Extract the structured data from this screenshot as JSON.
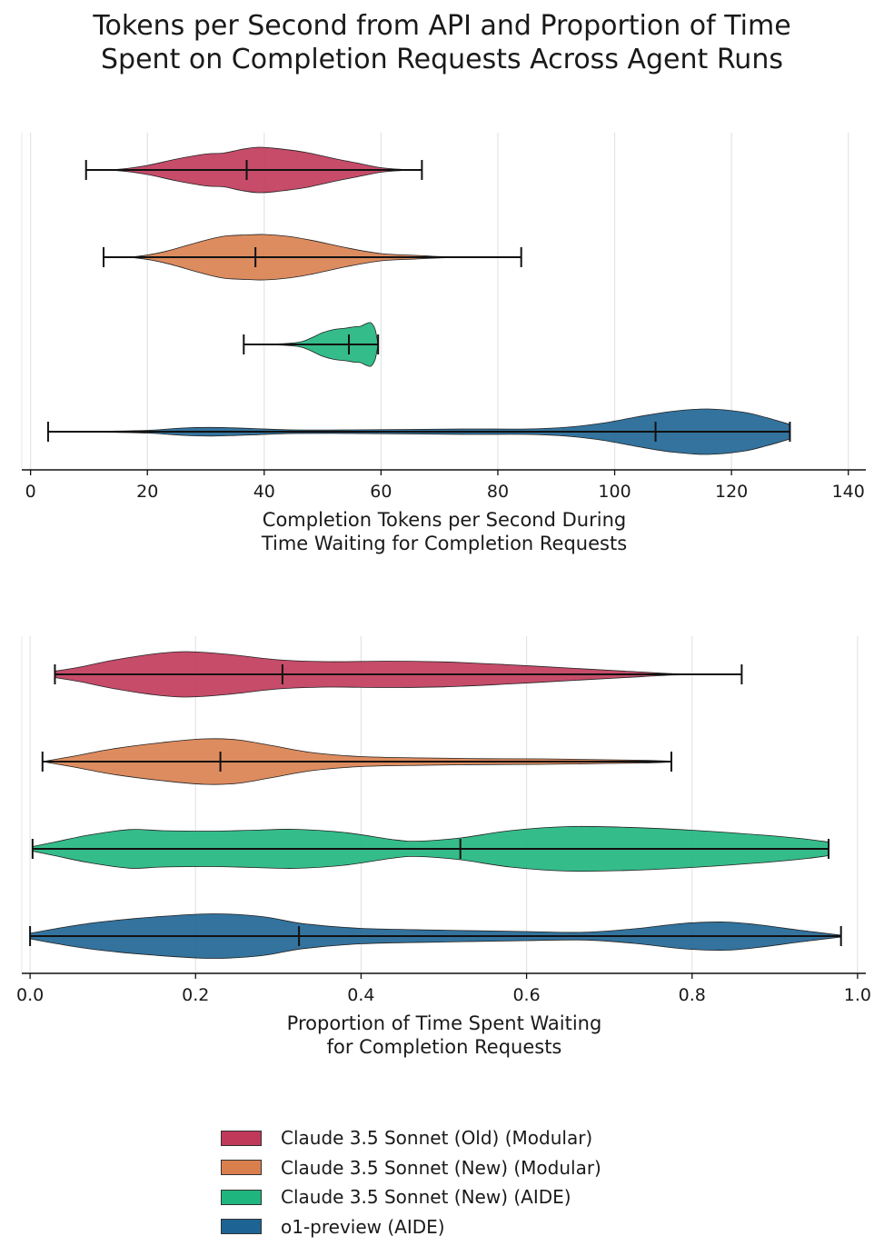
{
  "title_line1": "Tokens per Second from API and Proportion of Time",
  "title_line2": "Spent on Completion Requests Across Agent Runs",
  "chart_data": [
    {
      "type": "violin",
      "orientation": "horizontal",
      "xlabel_line1": "Completion Tokens per Second During",
      "xlabel_line2": "Time Waiting for Completion Requests",
      "xlim": [
        -1.5,
        143
      ],
      "xticks": [
        0,
        20,
        40,
        60,
        80,
        100,
        120,
        140
      ],
      "xtick_labels": [
        "0",
        "20",
        "40",
        "60",
        "80",
        "100",
        "120",
        "140"
      ],
      "grid": "vertical",
      "series": [
        {
          "name": "Claude 3.5 Sonnet (Old) (Modular)",
          "min": 9.5,
          "median": 37,
          "max": 67,
          "density": [
            [
              9.5,
              0.0
            ],
            [
              15,
              0.03
            ],
            [
              20,
              0.2
            ],
            [
              25,
              0.48
            ],
            [
              30,
              0.7
            ],
            [
              33,
              0.74
            ],
            [
              36,
              0.9
            ],
            [
              39,
              1.0
            ],
            [
              42,
              0.95
            ],
            [
              47,
              0.78
            ],
            [
              52,
              0.5
            ],
            [
              56,
              0.3
            ],
            [
              60,
              0.1
            ],
            [
              64,
              0.02
            ],
            [
              67,
              0.0
            ]
          ]
        },
        {
          "name": "Claude 3.5 Sonnet (New) (Modular)",
          "min": 12.5,
          "median": 38.5,
          "max": 84,
          "density": [
            [
              12.5,
              0.0
            ],
            [
              18,
              0.03
            ],
            [
              23,
              0.25
            ],
            [
              29,
              0.68
            ],
            [
              33,
              0.92
            ],
            [
              37,
              0.98
            ],
            [
              40,
              1.0
            ],
            [
              44,
              0.92
            ],
            [
              48,
              0.75
            ],
            [
              54,
              0.42
            ],
            [
              60,
              0.16
            ],
            [
              66,
              0.08
            ],
            [
              70,
              0.03
            ],
            [
              76,
              0.01
            ],
            [
              84,
              0.0
            ]
          ]
        },
        {
          "name": "Claude 3.5 Sonnet (New) (AIDE)",
          "min": 36.5,
          "median": 54.5,
          "max": 59.5,
          "density": [
            [
              36.5,
              0.0
            ],
            [
              42,
              0.02
            ],
            [
              46,
              0.1
            ],
            [
              48,
              0.28
            ],
            [
              50,
              0.52
            ],
            [
              52,
              0.66
            ],
            [
              54,
              0.72
            ],
            [
              55.5,
              0.78
            ],
            [
              56.5,
              0.8
            ],
            [
              57.5,
              0.92
            ],
            [
              58.3,
              0.95
            ],
            [
              59,
              0.65
            ],
            [
              59.5,
              0.0
            ]
          ]
        },
        {
          "name": "o1-preview (AIDE)",
          "min": 3,
          "median": 107,
          "max": 130,
          "density": [
            [
              3,
              0.0
            ],
            [
              10,
              0.01
            ],
            [
              20,
              0.06
            ],
            [
              26,
              0.16
            ],
            [
              31,
              0.19
            ],
            [
              38,
              0.14
            ],
            [
              45,
              0.08
            ],
            [
              55,
              0.08
            ],
            [
              65,
              0.1
            ],
            [
              75,
              0.12
            ],
            [
              85,
              0.12
            ],
            [
              92,
              0.2
            ],
            [
              98,
              0.38
            ],
            [
              104,
              0.66
            ],
            [
              110,
              0.9
            ],
            [
              116,
              1.0
            ],
            [
              122,
              0.86
            ],
            [
              126,
              0.62
            ],
            [
              130,
              0.32
            ]
          ]
        }
      ]
    },
    {
      "type": "violin",
      "orientation": "horizontal",
      "xlabel_line1": "Proportion of Time Spent Waiting",
      "xlabel_line2": "for Completion Requests",
      "xlim": [
        -0.01,
        1.01
      ],
      "xticks": [
        0.0,
        0.2,
        0.4,
        0.6,
        0.8,
        1.0
      ],
      "xtick_labels": [
        "0.0",
        "0.2",
        "0.4",
        "0.6",
        "0.8",
        "1.0"
      ],
      "grid": "vertical",
      "series": [
        {
          "name": "Claude 3.5 Sonnet (Old) (Modular)",
          "min": 0.03,
          "median": 0.305,
          "max": 0.86,
          "density": [
            [
              0.03,
              0.14
            ],
            [
              0.06,
              0.32
            ],
            [
              0.1,
              0.62
            ],
            [
              0.15,
              0.9
            ],
            [
              0.19,
              1.0
            ],
            [
              0.24,
              0.88
            ],
            [
              0.3,
              0.64
            ],
            [
              0.36,
              0.56
            ],
            [
              0.43,
              0.58
            ],
            [
              0.5,
              0.55
            ],
            [
              0.58,
              0.42
            ],
            [
              0.66,
              0.26
            ],
            [
              0.72,
              0.14
            ],
            [
              0.77,
              0.04
            ],
            [
              0.8,
              0.01
            ],
            [
              0.86,
              0.0
            ]
          ]
        },
        {
          "name": "Claude 3.5 Sonnet (New) (Modular)",
          "min": 0.015,
          "median": 0.23,
          "max": 0.775,
          "density": [
            [
              0.015,
              0.0
            ],
            [
              0.05,
              0.22
            ],
            [
              0.1,
              0.56
            ],
            [
              0.16,
              0.84
            ],
            [
              0.21,
              1.0
            ],
            [
              0.25,
              0.96
            ],
            [
              0.29,
              0.72
            ],
            [
              0.34,
              0.4
            ],
            [
              0.4,
              0.22
            ],
            [
              0.48,
              0.16
            ],
            [
              0.55,
              0.13
            ],
            [
              0.62,
              0.12
            ],
            [
              0.7,
              0.08
            ],
            [
              0.74,
              0.06
            ],
            [
              0.775,
              0.02
            ]
          ]
        },
        {
          "name": "Claude 3.5 Sonnet (New) (AIDE)",
          "min": 0.003,
          "median": 0.52,
          "max": 0.965,
          "density": [
            [
              0.003,
              0.1
            ],
            [
              0.03,
              0.3
            ],
            [
              0.07,
              0.6
            ],
            [
              0.12,
              0.85
            ],
            [
              0.16,
              0.8
            ],
            [
              0.22,
              0.78
            ],
            [
              0.27,
              0.82
            ],
            [
              0.32,
              0.86
            ],
            [
              0.38,
              0.72
            ],
            [
              0.44,
              0.4
            ],
            [
              0.47,
              0.34
            ],
            [
              0.52,
              0.48
            ],
            [
              0.58,
              0.8
            ],
            [
              0.65,
              0.98
            ],
            [
              0.72,
              0.95
            ],
            [
              0.8,
              0.82
            ],
            [
              0.88,
              0.62
            ],
            [
              0.93,
              0.46
            ],
            [
              0.965,
              0.3
            ]
          ]
        },
        {
          "name": "o1-preview (AIDE)",
          "min": 0.0,
          "median": 0.325,
          "max": 0.98,
          "density": [
            [
              0.0,
              0.12
            ],
            [
              0.03,
              0.32
            ],
            [
              0.08,
              0.6
            ],
            [
              0.15,
              0.84
            ],
            [
              0.22,
              0.98
            ],
            [
              0.28,
              0.86
            ],
            [
              0.33,
              0.55
            ],
            [
              0.4,
              0.34
            ],
            [
              0.5,
              0.26
            ],
            [
              0.6,
              0.2
            ],
            [
              0.67,
              0.17
            ],
            [
              0.73,
              0.32
            ],
            [
              0.79,
              0.56
            ],
            [
              0.84,
              0.62
            ],
            [
              0.88,
              0.5
            ],
            [
              0.93,
              0.26
            ],
            [
              0.98,
              0.04
            ]
          ]
        }
      ]
    }
  ],
  "colors": [
    "#c0385a",
    "#d97f4e",
    "#1fb57e",
    "#1d6494"
  ],
  "legend": [
    {
      "label": "Claude 3.5 Sonnet (Old) (Modular)",
      "color": "#c0385a"
    },
    {
      "label": "Claude 3.5 Sonnet (New) (Modular)",
      "color": "#d97f4e"
    },
    {
      "label": "Claude 3.5 Sonnet (New) (AIDE)",
      "color": "#1fb57e"
    },
    {
      "label": "o1-preview (AIDE)",
      "color": "#1d6494"
    }
  ]
}
